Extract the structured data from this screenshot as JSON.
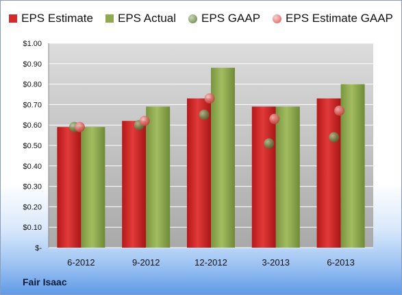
{
  "company": "Fair Isaac",
  "chart_data": {
    "type": "bar",
    "categories": [
      "6-2012",
      "9-2012",
      "12-2012",
      "3-2013",
      "6-2013"
    ],
    "series": [
      {
        "name": "EPS Estimate",
        "kind": "bar",
        "color": "#d42a2a",
        "values": [
          0.59,
          0.62,
          0.73,
          0.69,
          0.73
        ]
      },
      {
        "name": "EPS Actual",
        "kind": "bar",
        "color": "#8faa4e",
        "values": [
          0.59,
          0.69,
          0.88,
          0.69,
          0.8
        ]
      },
      {
        "name": "EPS GAAP",
        "kind": "scatter",
        "color": "#7f9a5e",
        "values": [
          0.59,
          0.6,
          0.65,
          0.51,
          0.54
        ]
      },
      {
        "name": "EPS Estimate GAAP",
        "kind": "scatter",
        "color": "#e37a78",
        "values": [
          0.59,
          0.62,
          0.73,
          0.63,
          0.67
        ]
      }
    ],
    "yticks": [
      "$-",
      "$0.10",
      "$0.20",
      "$0.30",
      "$0.40",
      "$0.50",
      "$0.60",
      "$0.70",
      "$0.80",
      "$0.90",
      "$1.00"
    ],
    "ylim": [
      0,
      1.0
    ],
    "grid": true,
    "legend_position": "top"
  }
}
